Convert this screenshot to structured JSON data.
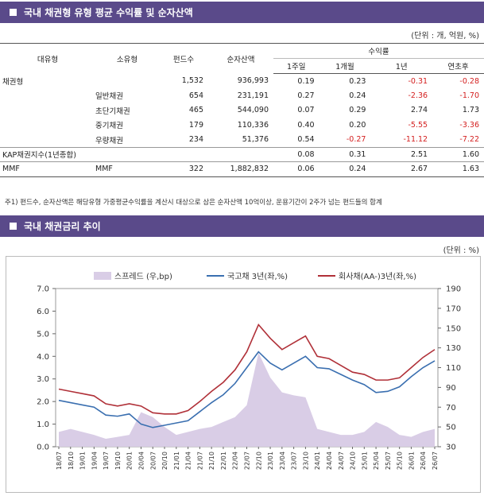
{
  "section1": {
    "title": "국내 채권형 유형 평균 수익률 및 순자산액",
    "unit": "(단위 : 개, 억원, %)"
  },
  "table": {
    "headers": {
      "large": "대유형",
      "small": "소유형",
      "funds": "펀드수",
      "assets": "순자산액",
      "returns_group": "수익률",
      "w1": "1주일",
      "m1": "1개월",
      "y1": "1년",
      "ytd": "연초후"
    },
    "rows": [
      {
        "large": "채권형",
        "small": "",
        "funds": "1,532",
        "assets": "936,993",
        "w1": "0.19",
        "m1": "0.23",
        "y1": "-0.31",
        "ytd": "-0.28"
      },
      {
        "large": "",
        "small": "일반채권",
        "funds": "654",
        "assets": "231,191",
        "w1": "0.27",
        "m1": "0.24",
        "y1": "-2.36",
        "ytd": "-1.70"
      },
      {
        "large": "",
        "small": "초단기채권",
        "funds": "465",
        "assets": "544,090",
        "w1": "0.07",
        "m1": "0.29",
        "y1": "2.74",
        "ytd": "1.73"
      },
      {
        "large": "",
        "small": "중기채권",
        "funds": "179",
        "assets": "110,336",
        "w1": "0.40",
        "m1": "0.20",
        "y1": "-5.55",
        "ytd": "-3.36"
      },
      {
        "large": "",
        "small": "우량채권",
        "funds": "234",
        "assets": "51,376",
        "w1": "0.54",
        "m1": "-0.27",
        "y1": "-11.12",
        "ytd": "-7.22"
      },
      {
        "large": "KAP채권지수(1년종합)",
        "small": "",
        "funds": "",
        "assets": "",
        "w1": "0.08",
        "m1": "0.31",
        "y1": "2.51",
        "ytd": "1.60"
      },
      {
        "large": "MMF",
        "small": "MMF",
        "funds": "322",
        "assets": "1,882,832",
        "w1": "0.06",
        "m1": "0.24",
        "y1": "2.67",
        "ytd": "1.63"
      }
    ],
    "footnote": "주1) 펀드수, 순자산액은 해당유형 가중평균수익률을 계산시 대상으로 삼은 순자산액 10억이상, 운용기간이 2주가 넘는 펀드들의 합계"
  },
  "section2": {
    "title": "국내 채권금리 추이",
    "unit": "(단위 : %)"
  },
  "chart_data": {
    "type": "line",
    "legend": [
      "스프레드 (우,bp)",
      "국고채 3년(좌,%)",
      "회사채(AA-)3년(좌,%)"
    ],
    "legend_placement": "top",
    "colors": {
      "spread": "#d9cde6",
      "gov": "#3a6fb0",
      "corp": "#b03038"
    },
    "ylim_left": [
      0,
      7
    ],
    "yticks_left": [
      "0.0",
      "1.0",
      "2.0",
      "3.0",
      "4.0",
      "5.0",
      "6.0",
      "7.0"
    ],
    "ylim_right": [
      30,
      190
    ],
    "yticks_right": [
      "30",
      "50",
      "70",
      "90",
      "110",
      "130",
      "150",
      "170",
      "190"
    ],
    "x": [
      "18/07",
      "18/10",
      "19/01",
      "19/04",
      "19/07",
      "19/10",
      "20/01",
      "20/04",
      "20/07",
      "20/10",
      "21/01",
      "21/04",
      "21/07",
      "21/10",
      "22/01",
      "22/04",
      "22/07",
      "22/10",
      "23/01",
      "23/04",
      "23/07",
      "23/10",
      "24/01",
      "24/04",
      "24/07",
      "24/10",
      "25/01",
      "25/04",
      "25/07",
      "25/10",
      "26/01",
      "26/04",
      "26/07"
    ],
    "series": [
      {
        "name": "국고채 3년(좌,%)",
        "axis": "left",
        "values": [
          2.05,
          1.95,
          1.85,
          1.75,
          1.4,
          1.35,
          1.45,
          1.0,
          0.85,
          0.95,
          1.05,
          1.15,
          1.55,
          1.95,
          2.3,
          2.8,
          3.5,
          4.2,
          3.7,
          3.4,
          3.7,
          4.0,
          3.5,
          3.45,
          3.2,
          2.95,
          2.75,
          2.4,
          2.45,
          2.65,
          3.1,
          3.5,
          3.8
        ]
      },
      {
        "name": "회사채(AA-)3년(좌,%)",
        "axis": "left",
        "values": [
          2.55,
          2.45,
          2.35,
          2.25,
          1.9,
          1.8,
          1.9,
          1.8,
          1.5,
          1.45,
          1.45,
          1.6,
          2.0,
          2.45,
          2.85,
          3.4,
          4.2,
          5.4,
          4.8,
          4.3,
          4.6,
          4.9,
          4.0,
          3.9,
          3.6,
          3.3,
          3.2,
          2.95,
          2.95,
          3.05,
          3.5,
          3.95,
          4.3
        ]
      },
      {
        "name": "스프레드 (우,bp)",
        "axis": "right",
        "values": [
          45,
          48,
          45,
          42,
          38,
          40,
          42,
          65,
          60,
          50,
          42,
          45,
          48,
          50,
          55,
          60,
          72,
          125,
          100,
          85,
          82,
          80,
          48,
          45,
          42,
          42,
          45,
          55,
          50,
          42,
          40,
          45,
          48
        ]
      }
    ]
  }
}
